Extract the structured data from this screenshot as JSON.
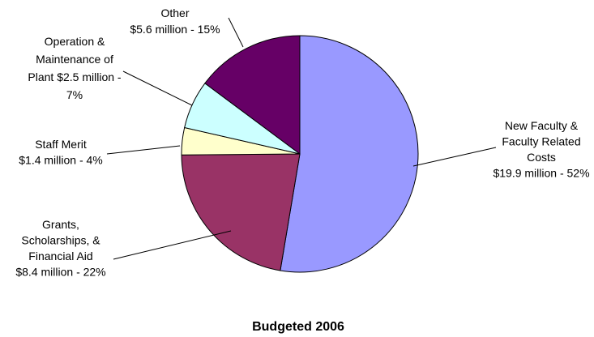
{
  "chart_data": {
    "type": "pie",
    "title": "Budgeted 2006",
    "unit": "million",
    "slices": [
      {
        "name": "New Faculty & Faculty Related Costs",
        "value": 19.9,
        "percent": 52,
        "color": "#9999ff",
        "label_lines": [
          "New Faculty &",
          "Faculty Related",
          "Costs",
          "$19.9 million - 52%"
        ]
      },
      {
        "name": "Grants, Scholarships, & Financial Aid",
        "value": 8.4,
        "percent": 22,
        "color": "#993366",
        "label_lines": [
          "Grants,",
          "Scholarships, &",
          "Financial Aid",
          "$8.4 million - 22%"
        ]
      },
      {
        "name": "Staff Merit",
        "value": 1.4,
        "percent": 4,
        "color": "#ffffcc",
        "label_lines": [
          "Staff Merit",
          "$1.4 million - 4%"
        ]
      },
      {
        "name": "Operation & Maintenance of Plant",
        "value": 2.5,
        "percent": 7,
        "color": "#ccffff",
        "label_lines": [
          "Operation &",
          "Maintenance of",
          "Plant $2.5 million -",
          "7%"
        ]
      },
      {
        "name": "Other",
        "value": 5.6,
        "percent": 15,
        "color": "#660066",
        "label_lines": [
          "Other",
          "$5.6 million - 15%"
        ]
      }
    ]
  }
}
